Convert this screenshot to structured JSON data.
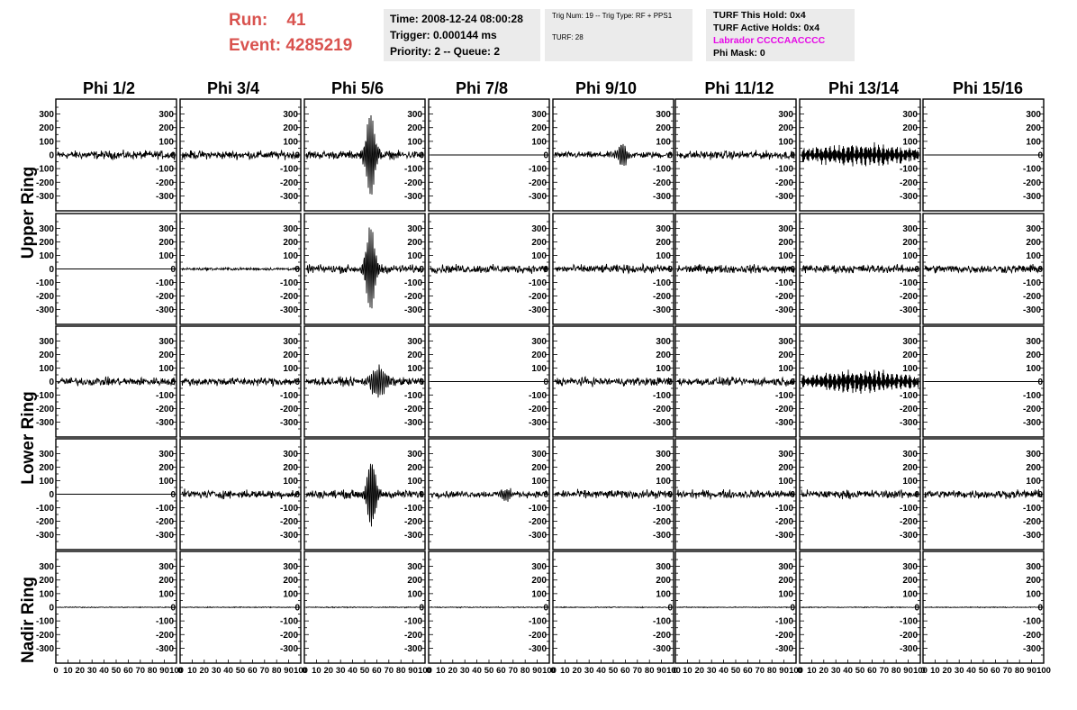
{
  "header": {
    "run_label": "Run:    41",
    "event_label": "Event: 4285219",
    "time": "Time: 2008-12-24 08:00:28",
    "trigger": "Trigger: 0.000144 ms",
    "priority": "Priority: 2 -- Queue: 2",
    "trig_info": "Trig Num: 19 -- Trig Type: RF + PPS1",
    "turf": "TURF: 28",
    "turf_hold": "TURF This Hold: 0x4",
    "turf_active": "TURF Active Holds: 0x4",
    "labrador": "Labrador CCCCAACCCC",
    "phi_mask": "Phi Mask: 0",
    "labrador_color": "#e60ae6"
  },
  "columns": [
    "Phi 1/2",
    "Phi 3/4",
    "Phi 5/6",
    "Phi 7/8",
    "Phi 9/10",
    "Phi 11/12",
    "Phi 13/14",
    "Phi 15/16"
  ],
  "rings": [
    {
      "name": "Upper Ring"
    },
    {
      "name": "Lower Ring"
    },
    {
      "name": "Nadir Ring"
    }
  ],
  "y_ticks_main": [
    "300",
    "200",
    "100",
    "0",
    "-100",
    "-200",
    "-300"
  ],
  "y_ticks_nadir": [
    "300",
    "200",
    "100",
    "0",
    "-100",
    "-200",
    "-300"
  ],
  "x_ticks": [
    "0",
    "10",
    "20",
    "30",
    "40",
    "50",
    "60",
    "70",
    "80",
    "90",
    "100"
  ],
  "traces": [
    [
      "noise",
      "noise",
      "pulse",
      "flat",
      "burst",
      "noise",
      "bigburst",
      "flat"
    ],
    [
      "flat",
      "small",
      "pulse",
      "noise",
      "noise",
      "noise",
      "noise",
      "noise"
    ],
    [
      "noise",
      "noise",
      "mediumburst",
      "flat",
      "noise",
      "noise",
      "bigburst",
      "flat"
    ],
    [
      "flat",
      "noise",
      "bigpulse",
      "latebump",
      "noise",
      "noise",
      "noise",
      "noise"
    ],
    [
      "tiny",
      "tiny",
      "tiny",
      "tiny",
      "tiny",
      "tiny",
      "tiny",
      "tiny"
    ]
  ]
}
